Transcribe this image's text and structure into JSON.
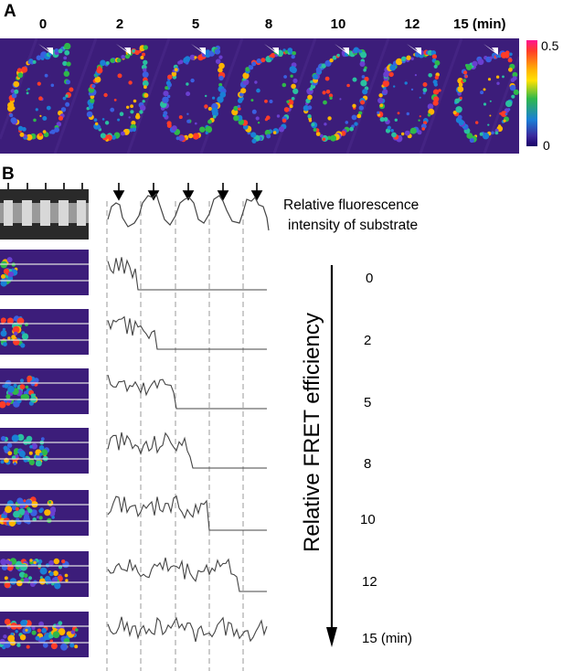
{
  "panel_a": {
    "letter": "A",
    "time_labels": [
      "0",
      "2",
      "5",
      "8",
      "10",
      "12",
      "15 (min)"
    ],
    "colorbar": {
      "max_label": "0.5",
      "min_label": "0"
    }
  },
  "panel_b": {
    "letter": "B",
    "substrate_caption_line1": "Relative fluorescence",
    "substrate_caption_line2": "intensity of substrate",
    "axis_label": "Relative FRET efficiency",
    "time_values": [
      "0",
      "2",
      "5",
      "8",
      "10",
      "12",
      "15 (min)"
    ]
  },
  "colors": {
    "background_strip": "#3c1d7a",
    "trace": "#444444",
    "dashed_guides": "#9a9a9a"
  }
}
